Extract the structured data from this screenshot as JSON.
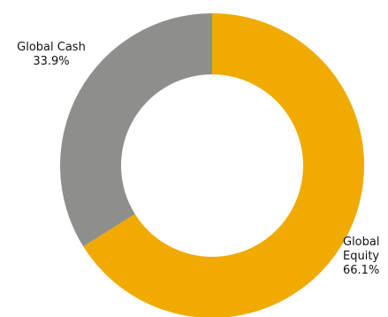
{
  "chart_data": {
    "type": "pie",
    "variant": "donut",
    "title": "",
    "legend": "none",
    "slices": [
      {
        "name": "Global Equity",
        "label_lines": [
          "Global",
          "Equity"
        ],
        "value_label": "66.1%",
        "value": 66.1,
        "color": "#f0aa00"
      },
      {
        "name": "Global Cash",
        "label_lines": [
          "Global Cash"
        ],
        "value_label": "33.9%",
        "value": 33.9,
        "color": "#8e8f8c"
      }
    ]
  }
}
